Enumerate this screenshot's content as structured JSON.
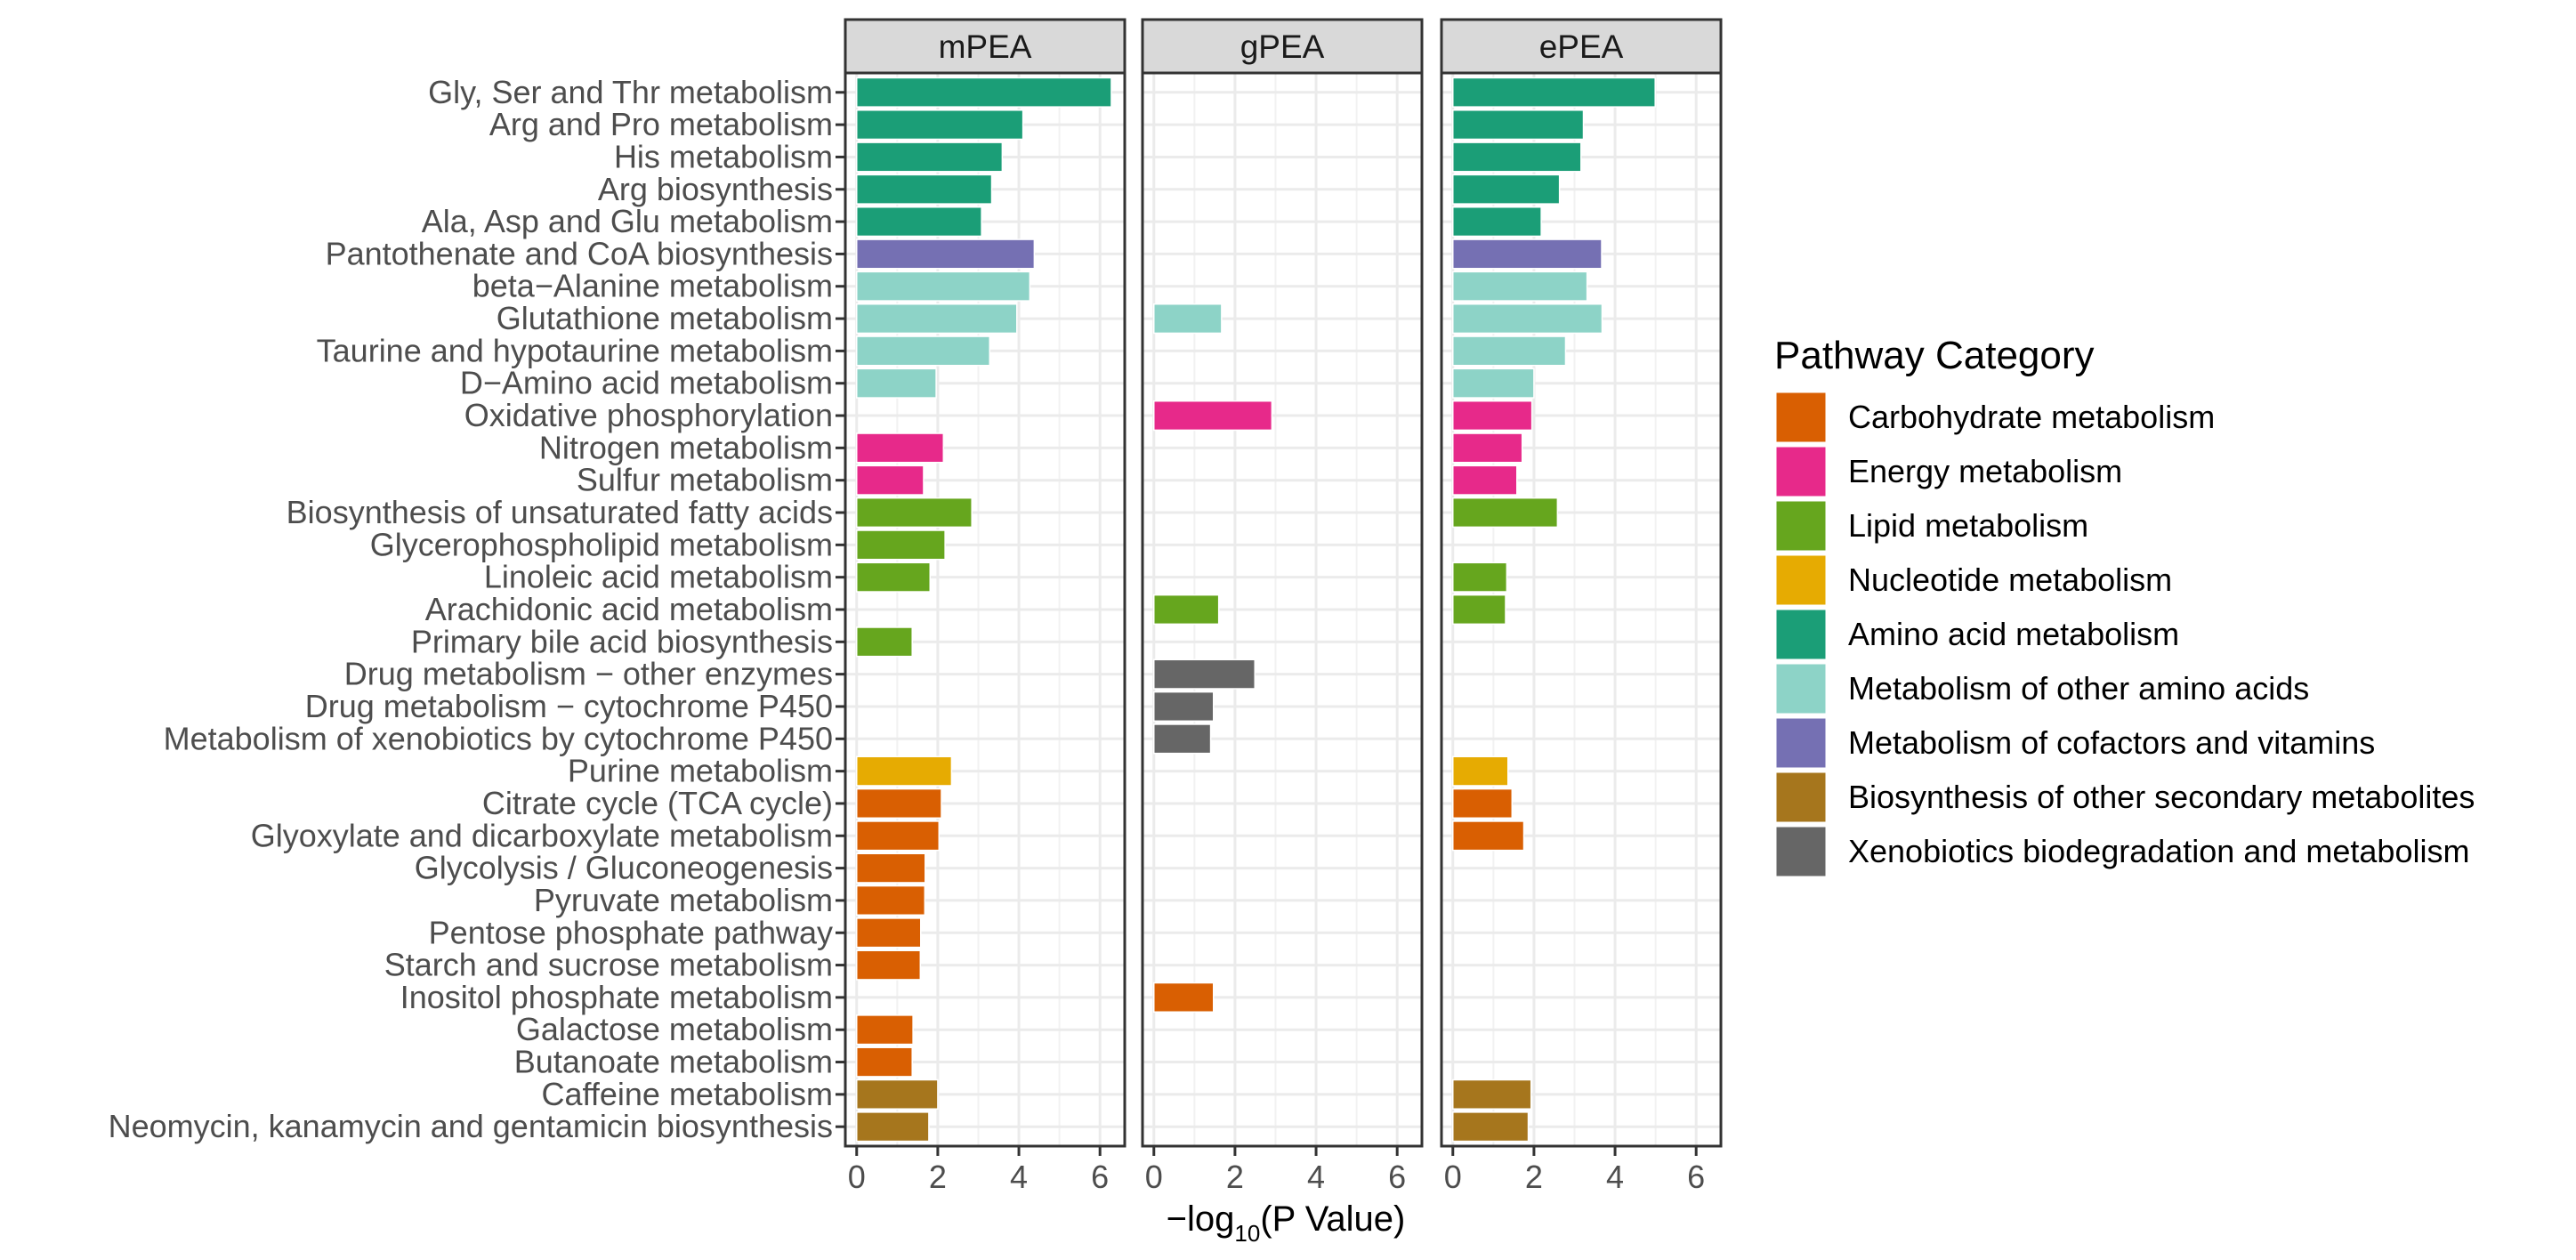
{
  "chart_data": {
    "type": "bar",
    "orientation": "horizontal",
    "facet_by": "method",
    "xlabel": "−log10(P Value)",
    "xlabel_parts": {
      "prefix": "−log",
      "subscript": "10",
      "suffix": "(P Value)"
    },
    "ylabel": "",
    "xlim": [
      -0.28,
      6.61
    ],
    "xticks": [
      0,
      2,
      4,
      6
    ],
    "xtick_labels": [
      "0",
      "2",
      "4",
      "6"
    ],
    "grid": true,
    "panels": [
      "mPEA",
      "gPEA",
      "ePEA"
    ],
    "legend": {
      "title": "Pathway Category",
      "position": "right",
      "entries": [
        {
          "name": "Carbohydrate metabolism",
          "color": "#D95F02"
        },
        {
          "name": "Energy metabolism",
          "color": "#E7298A"
        },
        {
          "name": "Lipid metabolism",
          "color": "#66A61E"
        },
        {
          "name": "Nucleotide metabolism",
          "color": "#E6AB02"
        },
        {
          "name": "Amino acid metabolism",
          "color": "#1B9E77"
        },
        {
          "name": "Metabolism of other amino acids",
          "color": "#8DD3C7"
        },
        {
          "name": "Metabolism of cofactors and vitamins",
          "color": "#7570B3"
        },
        {
          "name": "Biosynthesis of other secondary metabolites",
          "color": "#A6761D"
        },
        {
          "name": "Xenobiotics biodegradation and metabolism",
          "color": "#666666"
        }
      ]
    },
    "categories": [
      "Gly, Ser and Thr metabolism",
      "Arg and Pro metabolism",
      "His metabolism",
      "Arg biosynthesis",
      "Ala, Asp and Glu metabolism",
      "Pantothenate and CoA biosynthesis",
      "beta−Alanine metabolism",
      "Glutathione metabolism",
      "Taurine and hypotaurine metabolism",
      "D−Amino acid metabolism",
      "Oxidative phosphorylation",
      "Nitrogen metabolism",
      "Sulfur metabolism",
      "Biosynthesis of unsaturated fatty acids",
      "Glycerophospholipid metabolism",
      "Linoleic acid metabolism",
      "Arachidonic acid metabolism",
      "Primary bile acid biosynthesis",
      "Drug metabolism − other enzymes",
      "Drug metabolism − cytochrome P450",
      "Metabolism of xenobiotics by cytochrome P450",
      "Purine metabolism",
      "Citrate cycle (TCA cycle)",
      "Glyoxylate and dicarboxylate metabolism",
      "Glycolysis / Gluconeogenesis",
      "Pyruvate metabolism",
      "Pentose phosphate pathway",
      "Starch and sucrose metabolism",
      "Inositol phosphate metabolism",
      "Galactose metabolism",
      "Butanoate metabolism",
      "Caffeine metabolism",
      "Neomycin, kanamycin and gentamicin biosynthesis"
    ],
    "category_group": [
      "Amino acid metabolism",
      "Amino acid metabolism",
      "Amino acid metabolism",
      "Amino acid metabolism",
      "Amino acid metabolism",
      "Metabolism of cofactors and vitamins",
      "Metabolism of other amino acids",
      "Metabolism of other amino acids",
      "Metabolism of other amino acids",
      "Metabolism of other amino acids",
      "Energy metabolism",
      "Energy metabolism",
      "Energy metabolism",
      "Lipid metabolism",
      "Lipid metabolism",
      "Lipid metabolism",
      "Lipid metabolism",
      "Lipid metabolism",
      "Xenobiotics biodegradation and metabolism",
      "Xenobiotics biodegradation and metabolism",
      "Xenobiotics biodegradation and metabolism",
      "Nucleotide metabolism",
      "Carbohydrate metabolism",
      "Carbohydrate metabolism",
      "Carbohydrate metabolism",
      "Carbohydrate metabolism",
      "Carbohydrate metabolism",
      "Carbohydrate metabolism",
      "Carbohydrate metabolism",
      "Carbohydrate metabolism",
      "Carbohydrate metabolism",
      "Biosynthesis of other secondary metabolites",
      "Biosynthesis of other secondary metabolites"
    ],
    "series": [
      {
        "name": "mPEA",
        "values": [
          6.28,
          4.1,
          3.59,
          3.33,
          3.08,
          4.38,
          4.27,
          3.95,
          3.28,
          1.96,
          null,
          2.14,
          1.65,
          2.84,
          2.18,
          1.81,
          null,
          1.37,
          null,
          null,
          null,
          2.34,
          2.09,
          2.03,
          1.69,
          1.68,
          1.58,
          1.57,
          null,
          1.39,
          1.37,
          2.0,
          1.78
        ]
      },
      {
        "name": "gPEA",
        "values": [
          null,
          null,
          null,
          null,
          null,
          null,
          null,
          1.67,
          null,
          null,
          2.91,
          null,
          null,
          null,
          null,
          null,
          1.6,
          null,
          2.49,
          1.47,
          1.4,
          null,
          null,
          null,
          null,
          null,
          null,
          null,
          1.47,
          null,
          null,
          null,
          null
        ]
      },
      {
        "name": "ePEA",
        "values": [
          4.99,
          3.22,
          3.16,
          2.63,
          2.18,
          3.67,
          3.31,
          3.68,
          2.78,
          2.0,
          1.95,
          1.71,
          1.58,
          2.58,
          null,
          1.33,
          1.3,
          null,
          null,
          null,
          null,
          1.36,
          1.46,
          1.75,
          null,
          null,
          null,
          null,
          null,
          null,
          null,
          1.93,
          1.86
        ]
      }
    ]
  }
}
